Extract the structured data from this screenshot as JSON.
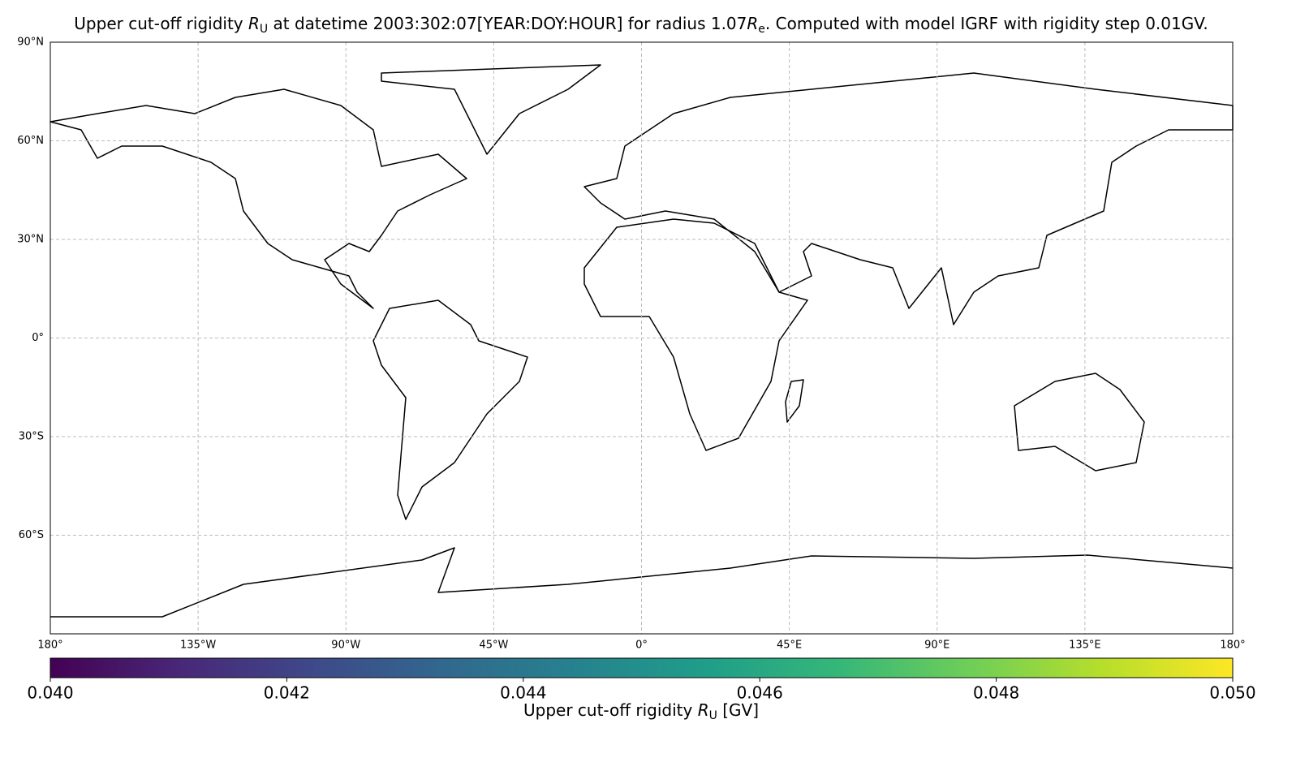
{
  "chart_data": {
    "type": "map",
    "title_parts": [
      "Upper cut-off rigidity ",
      "R",
      "U",
      " at datetime 2003:302:07[YEAR:DOY:HOUR] for radius 1.07",
      "R",
      "e",
      ". Computed with model IGRF with rigidity step 0.01GV."
    ],
    "xlim": [
      -180,
      180
    ],
    "ylim": [
      -90,
      90
    ],
    "xticks": [
      {
        "value": -180,
        "label": "180°"
      },
      {
        "value": -135,
        "label": "135°W"
      },
      {
        "value": -90,
        "label": "90°W"
      },
      {
        "value": -45,
        "label": "45°W"
      },
      {
        "value": 0,
        "label": "0°"
      },
      {
        "value": 45,
        "label": "45°E"
      },
      {
        "value": 90,
        "label": "90°E"
      },
      {
        "value": 135,
        "label": "135°E"
      },
      {
        "value": 180,
        "label": "180°"
      }
    ],
    "yticks": [
      {
        "value": 90,
        "label": "90°N"
      },
      {
        "value": 60,
        "label": "60°N"
      },
      {
        "value": 30,
        "label": "30°N"
      },
      {
        "value": 0,
        "label": "0°"
      },
      {
        "value": -30,
        "label": "30°S"
      },
      {
        "value": -60,
        "label": "60°S"
      }
    ],
    "grid": true,
    "colorbar": {
      "colormap": [
        "#440154",
        "#482878",
        "#3e4989",
        "#31688e",
        "#26828e",
        "#1f9e89",
        "#35b779",
        "#6ece58",
        "#b5de2b",
        "#fde725"
      ],
      "clim": [
        0.04,
        0.05
      ],
      "ticks": [
        {
          "value": 0.04,
          "label": "0.040"
        },
        {
          "value": 0.042,
          "label": "0.042"
        },
        {
          "value": 0.044,
          "label": "0.044"
        },
        {
          "value": 0.046,
          "label": "0.046"
        },
        {
          "value": 0.048,
          "label": "0.048"
        },
        {
          "value": 0.05,
          "label": "0.050"
        }
      ],
      "label_parts": [
        "Upper cut-off rigidity ",
        "R",
        "U",
        " [GV]"
      ]
    }
  }
}
